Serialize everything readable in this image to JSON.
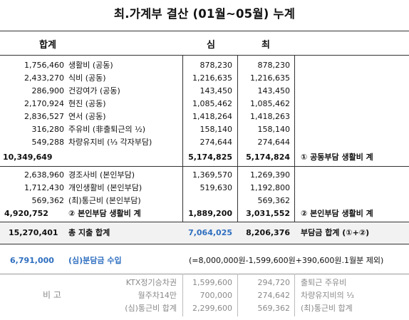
{
  "title": "최.가계부 결산 (01월~05월) 누계",
  "headers": {
    "total": "합계",
    "shim": "심",
    "choi": "최"
  },
  "common_rows": [
    {
      "total": "1,756,460",
      "label": "생활비 (공동)",
      "shim": "878,230",
      "choi": "878,230"
    },
    {
      "total": "2,433,270",
      "label": "식비 (공동)",
      "shim": "1,216,635",
      "choi": "1,216,635"
    },
    {
      "total": "286,900",
      "label": "건강여가 (공동)",
      "shim": "143,450",
      "choi": "143,450"
    },
    {
      "total": "2,170,924",
      "label": "현진 (공동)",
      "shim": "1,085,462",
      "choi": "1,085,462"
    },
    {
      "total": "2,836,527",
      "label": "연서 (공동)",
      "shim": "1,418,264",
      "choi": "1,418,263"
    },
    {
      "total": "316,280",
      "label": "주유비 (非출퇴근의 ½)",
      "shim": "158,140",
      "choi": "158,140"
    },
    {
      "total": "549,288",
      "label": "차량유지비 (⅓ 각자부담)",
      "shim": "274,644",
      "choi": "274,644"
    }
  ],
  "common_subtotal": {
    "total": "10,349,649",
    "shim": "5,174,825",
    "choi": "5,174,824",
    "note": "① 공동부담 생활비 계"
  },
  "personal_rows": [
    {
      "total": "2,638,960",
      "label": "경조사비 (본인부담)",
      "shim": "1,369,570",
      "choi": "1,269,390"
    },
    {
      "total": "1,712,430",
      "label": "개인생활비 (본인부담)",
      "shim": "519,630",
      "choi": "1,192,800"
    },
    {
      "total": "569,362",
      "label": "(최)통근비 (본인부담)",
      "shim": "",
      "choi": "569,362"
    }
  ],
  "personal_subtotal": {
    "total": "4,920,752",
    "label": "② 본인부담 생활비 계",
    "shim": "1,889,200",
    "choi": "3,031,552",
    "note": "② 본인부담 생활비 계"
  },
  "grand_total": {
    "total": "15,270,401",
    "label": "총 지출 합계",
    "shim": "7,064,025",
    "choi": "8,206,376",
    "note": "부담금 합계 (①+②)"
  },
  "income": {
    "amount": "6,791,000",
    "label": "(심)분담금 수입",
    "formula": "(=8,000,000원-1,599,600원+390,600원.1월분 제외)"
  },
  "remarks": {
    "label": "비 고",
    "rows": [
      {
        "left_label": "KTX정기승차권",
        "left_value": "1,599,600",
        "right_value": "294,720",
        "right_label": "출퇴근 주유비"
      },
      {
        "left_label": "월주차14만",
        "left_value": "700,000",
        "right_value": "274,642",
        "right_label": "차량유지비의 ⅓"
      },
      {
        "left_label": "(심)통근비 합계",
        "left_value": "2,299,600",
        "right_value": "569,362",
        "right_label": "(최)통근비 합계"
      }
    ]
  },
  "colors": {
    "accent_blue": "#2f6fc0",
    "shade": "#f2f2f2",
    "remark_gray": "#8a8a8a"
  }
}
